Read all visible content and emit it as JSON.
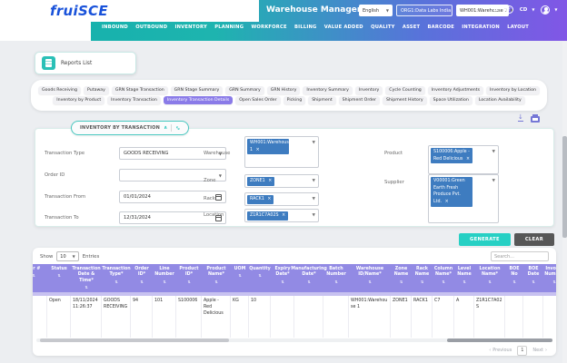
{
  "header": {
    "logo_frui": "frui",
    "logo_sce": "SCE",
    "app_title": "Warehouse Management",
    "language": "English",
    "organization": "ORG1:Data Labs India",
    "warehouse": "WH001:Warehouse 1",
    "profile_code": "CD",
    "nav_items": [
      "INBOUND",
      "OUTBOUND",
      "INVENTORY",
      "PLANNING",
      "WORKFORCE",
      "BILLING",
      "VALUE ADDED",
      "QUALITY",
      "ASSET",
      "BARCODE",
      "INTEGRATION",
      "LAYOUT"
    ]
  },
  "reports": {
    "button_label": "Reports List",
    "tabs_row1": [
      "Goods Receiving",
      "Putaway",
      "GRN Stage Transaction",
      "GRN Stage Summary",
      "GRN Summary",
      "GRN History",
      "Inventory Summary",
      "Inventory",
      "Cycle Counting",
      "Inventory Adjustments",
      "Inventory by Location"
    ],
    "tabs_row2": [
      "Inventory by Product",
      "Inventory Transaction",
      "Inventory Transaction Details",
      "Open Sales Order",
      "Picking",
      "Shipment",
      "Shipment Order",
      "Shipment History",
      "Space Utilization",
      "Location Availability"
    ],
    "active_tab": "Inventory Transaction Details"
  },
  "filters": {
    "panel_title": "INVENTORY BY TRANSACTION",
    "transaction_type": {
      "label": "Transaction Type",
      "value": "GOODS RECEIVING"
    },
    "order_id": {
      "label": "Order ID",
      "value": ""
    },
    "transaction_from": {
      "label": "Transaction From",
      "value": "01/01/2024"
    },
    "transaction_to": {
      "label": "Transaction To",
      "value": "12/31/2024"
    },
    "warehouse": {
      "label": "Warehouse",
      "tag": "WH001:Warehouse 1"
    },
    "zone": {
      "label": "Zone",
      "tag": "ZONE1"
    },
    "rack": {
      "label": "Rack",
      "tag": "RACK1"
    },
    "location": {
      "label": "Location",
      "tag": "Z1R1C7A02S"
    },
    "product": {
      "label": "Product",
      "tag": "S100006:Apple - Red Delicious"
    },
    "supplier": {
      "label": "Supplier",
      "tag": "V00001:Green Earth Fresh Produce Pvt. Ltd."
    }
  },
  "actions": {
    "generate": "GENERATE",
    "clear": "CLEAR"
  },
  "table": {
    "show_label": "Show",
    "page_size": "10",
    "entries_label": "Entries",
    "search_placeholder": "Search...",
    "columns": [
      "der #",
      "Status",
      "Transaction Date & Time*",
      "Transaction Type*",
      "Order ID*",
      "Line Number",
      "Product ID*",
      "Product Name*",
      "UOM",
      "Quantity",
      "Expiry Date*",
      "Manufacturing Date*",
      "Batch Number",
      "Warehouse ID/Name*",
      "Zone Name",
      "Rack Name",
      "Column Name*",
      "Level Name",
      "Location Name*",
      "BOE No",
      "BOE Date",
      "Invoice Number"
    ],
    "row": [
      "ce\nd.",
      "Open",
      "18/11/2024 11:26:37",
      "GOODS RECEIVING",
      "94",
      "101",
      "S100006",
      "Apple - Red Delicious",
      "KG",
      "10",
      "",
      "",
      "",
      "WH001:Warehouse 1",
      "ZONE1",
      "RACK1",
      "C7",
      "A",
      "Z1R1C7A02S",
      "",
      "",
      ""
    ],
    "pagination": {
      "previous": "Previous",
      "page": "1",
      "next": "Next"
    }
  }
}
